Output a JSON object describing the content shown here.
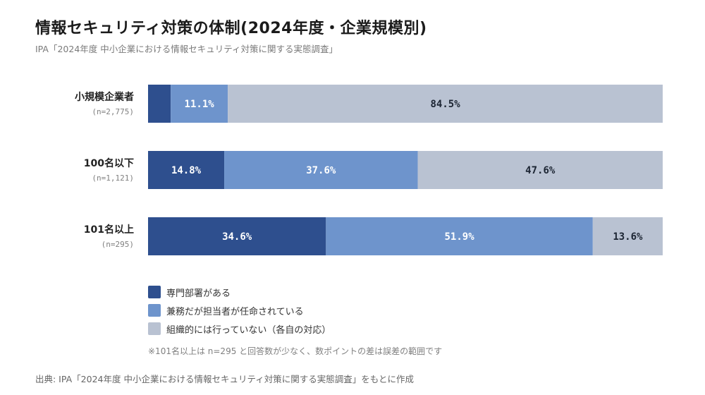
{
  "chart_data": {
    "type": "bar",
    "orientation": "horizontal",
    "stacked": true,
    "title": "情報セキュリティ対策の体制(2024年度・企業規模別)",
    "subtitle": "IPA「2024年度 中小企業における情報セキュリティ対策に関する実態調査」",
    "categories": [
      "小規模企業者",
      "100名以下",
      "101名以上"
    ],
    "sample_sizes": [
      "(n=2,775)",
      "(n=1,121)",
      "(n=295)"
    ],
    "xlim": [
      0,
      100
    ],
    "grid": false,
    "legend_position": "bottom-left",
    "series": [
      {
        "name": "専門部署がある",
        "color": "#2e4f8e",
        "label_color": "#ffffff",
        "values": [
          4.4,
          14.8,
          34.6
        ],
        "labels": [
          "",
          "14.8%",
          "34.6%"
        ]
      },
      {
        "name": "兼務だが担当者が任命されている",
        "color": "#6e94cc",
        "label_color": "#ffffff",
        "values": [
          11.1,
          37.6,
          51.9
        ],
        "labels": [
          "11.1%",
          "37.6%",
          "51.9%"
        ]
      },
      {
        "name": "組織的には行っていない（各自の対応）",
        "color": "#b9c2d2",
        "label_color": "#1c2533",
        "values": [
          84.5,
          47.6,
          13.6
        ],
        "labels": [
          "84.5%",
          "47.6%",
          "13.6%"
        ]
      }
    ]
  },
  "note": "※101名以上は n=295 と回答数が少なく、数ポイントの差は誤差の範囲です",
  "source": "出典: IPA「2024年度 中小企業における情報セキュリティ対策に関する実態調査」をもとに作成"
}
